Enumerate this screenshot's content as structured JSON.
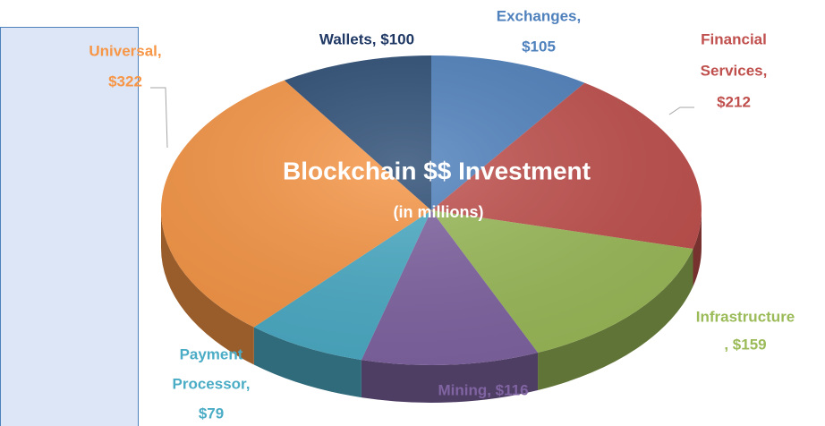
{
  "chart_data": {
    "type": "pie3d",
    "title": "Blockchain $$ Investment",
    "subtitle": "(in millions)",
    "values": [
      105,
      212,
      159,
      116,
      79,
      322,
      100
    ],
    "data_labels": [
      [
        "Exchanges,",
        "$105"
      ],
      [
        "Financial",
        "Services,",
        "$212"
      ],
      [
        "Infrastructure",
        ", $159"
      ],
      [
        "Mining, $116"
      ],
      [
        "Payment",
        "Processor,",
        "$79"
      ],
      [
        "Universal,",
        "$322"
      ],
      [
        "Wallets, $100"
      ]
    ],
    "colors": [
      "#4f81bd",
      "#c0504d",
      "#9bbb59",
      "#8064a2",
      "#4bacc6",
      "#f79646",
      "#2c4d75"
    ],
    "label_colors": [
      "#4f81bd",
      "#c0504d",
      "#9bbb59",
      "#8064a2",
      "#4bacc6",
      "#f79646",
      "#1f3864"
    ]
  }
}
